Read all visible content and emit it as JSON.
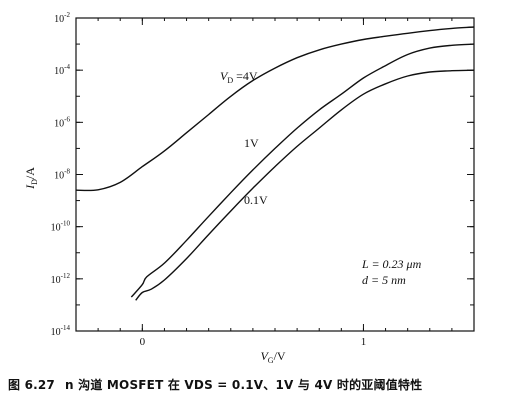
{
  "chart_data": {
    "type": "line",
    "scale_y": "log",
    "xlabel": "V_G / V",
    "ylabel": "I_D / A",
    "xlim": [
      -0.3,
      1.5
    ],
    "ylim": [
      1e-14,
      0.01
    ],
    "x_ticks": [
      {
        "value": 0,
        "label": "0"
      },
      {
        "value": 1,
        "label": "1"
      }
    ],
    "y_ticks": [
      {
        "value": 0.01,
        "base": "10",
        "exp": "-2"
      },
      {
        "value": 0.0001,
        "base": "10",
        "exp": "-4"
      },
      {
        "value": 1e-06,
        "base": "10",
        "exp": "-6"
      },
      {
        "value": 1e-08,
        "base": "10",
        "exp": "-8"
      },
      {
        "value": 1e-10,
        "base": "10",
        "exp": "-10"
      },
      {
        "value": 1e-12,
        "base": "10",
        "exp": "-12"
      },
      {
        "value": 1e-14,
        "base": "10",
        "exp": "-14"
      }
    ],
    "series": [
      {
        "name": "V_D = 4V",
        "x": [
          -0.3,
          -0.2,
          -0.1,
          0.0,
          0.1,
          0.2,
          0.3,
          0.4,
          0.5,
          0.6,
          0.7,
          0.8,
          0.9,
          1.0,
          1.1,
          1.2,
          1.3,
          1.4,
          1.5
        ],
        "y": [
          2.5e-09,
          2.6e-09,
          5e-09,
          2e-08,
          8e-08,
          4e-07,
          2e-06,
          1e-05,
          4e-05,
          0.00012,
          0.0003,
          0.0006,
          0.001,
          0.0015,
          0.002,
          0.0026,
          0.0033,
          0.004,
          0.0045
        ]
      },
      {
        "name": "1V",
        "x": [
          -0.05,
          0.0,
          0.02,
          0.1,
          0.2,
          0.3,
          0.4,
          0.5,
          0.6,
          0.7,
          0.8,
          0.9,
          1.0,
          1.1,
          1.2,
          1.3,
          1.4,
          1.5
        ],
        "y": [
          2e-13,
          6e-13,
          1.2e-12,
          4e-12,
          3e-11,
          2.5e-10,
          2e-09,
          1.5e-08,
          1e-07,
          6e-07,
          3e-06,
          1.2e-05,
          5e-05,
          0.00015,
          0.0004,
          0.0007,
          0.0009,
          0.001
        ]
      },
      {
        "name": "0.1V",
        "x": [
          -0.03,
          0.0,
          0.04,
          0.1,
          0.2,
          0.3,
          0.4,
          0.5,
          0.6,
          0.7,
          0.8,
          0.9,
          1.0,
          1.1,
          1.2,
          1.3,
          1.4,
          1.5
        ],
        "y": [
          1.5e-13,
          3e-13,
          4e-13,
          9e-13,
          6e-12,
          5e-11,
          4e-10,
          3e-09,
          2e-08,
          1.2e-07,
          6e-07,
          3e-06,
          1.2e-05,
          3e-05,
          6e-05,
          8.5e-05,
          9.5e-05,
          0.0001
        ]
      }
    ],
    "curve_labels": [
      {
        "series": 0,
        "main": "V",
        "sub": "D",
        "rest": " =4V"
      },
      {
        "series": 1,
        "main": "1V",
        "sub": "",
        "rest": ""
      },
      {
        "series": 2,
        "main": "0.1V",
        "sub": "",
        "rest": ""
      }
    ],
    "annotations": {
      "L_text": "L = 0.23 μm",
      "d_text": "d = 5 nm"
    },
    "axis_labels": {
      "y_main": "I",
      "y_sub": "D",
      "y_rest": "/A",
      "x_main": "V",
      "x_sub": "G",
      "x_rest": "/V"
    }
  },
  "caption": {
    "number": "图 6.27",
    "text": "n 沟道 MOSFET 在 VDS = 0.1V、1V 与 4V 时的亚阈值特性"
  }
}
